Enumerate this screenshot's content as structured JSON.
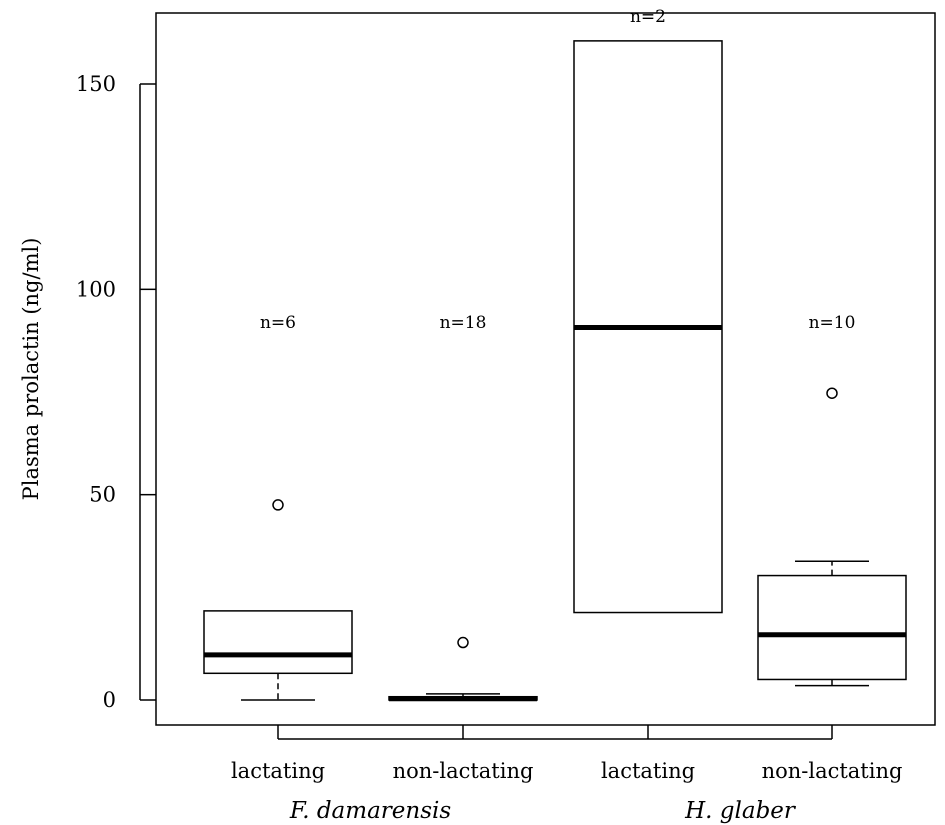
{
  "chart_data": {
    "type": "boxplot",
    "ylabel": "Plasma prolactin (ng/ml)",
    "ylim": [
      -7,
      167
    ],
    "yticks": [
      0,
      50,
      100,
      150
    ],
    "categories": [
      "lactating",
      "non-lactating",
      "lactating",
      "non-lactating"
    ],
    "groups": [
      {
        "label": "F. damarensis",
        "categories": [
          0,
          1
        ]
      },
      {
        "label": "H. glaber",
        "categories": [
          2,
          3
        ]
      }
    ],
    "boxes": [
      {
        "category": "lactating",
        "group": "F. damarensis",
        "n_label": "n=6",
        "whisker_low": 0,
        "q1": 6.5,
        "median": 11,
        "q3": 21.7,
        "whisker_high": 21.7,
        "outliers": [
          47.5
        ]
      },
      {
        "category": "non-lactating",
        "group": "F. damarensis",
        "n_label": "n=18",
        "whisker_low": 0,
        "q1": 0,
        "median": 0.3,
        "q3": 0.8,
        "whisker_high": 1.5,
        "outliers": [
          14
        ]
      },
      {
        "category": "lactating",
        "group": "H. glaber",
        "n_label": "n=2",
        "whisker_low": 21.3,
        "q1": 21.3,
        "median": 90.7,
        "q3": 160.5,
        "whisker_high": 160.5,
        "outliers": []
      },
      {
        "category": "non-lactating",
        "group": "H. glaber",
        "n_label": "n=10",
        "whisker_low": 3.5,
        "q1": 5,
        "median": 15.9,
        "q3": 30.3,
        "whisker_high": 33.8,
        "outliers": [
          74.7
        ]
      }
    ],
    "n_label_y": [
      92,
      92,
      166.5,
      92
    ]
  }
}
